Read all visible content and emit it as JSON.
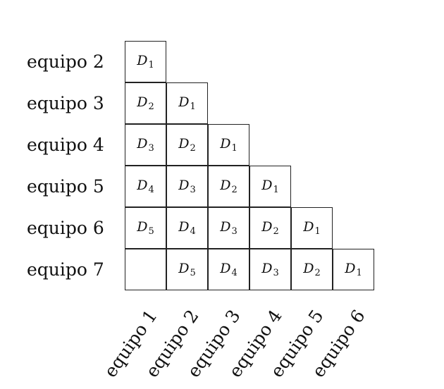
{
  "rows": [
    "equipo 2",
    "equipo 3",
    "equipo 4",
    "equipo 5",
    "equipo 6",
    "equipo 7"
  ],
  "columns": [
    "equipo 1",
    "equipo 2",
    "equipo 3",
    "equipo 4",
    "equipo 5",
    "equipo 6"
  ],
  "cells": [
    [
      "D1"
    ],
    [
      "D2",
      "D1"
    ],
    [
      "D3",
      "D2",
      "D1"
    ],
    [
      "D4",
      "D3",
      "D2",
      "D1"
    ],
    [
      "D5",
      "D4",
      "D3",
      "D2",
      "D1"
    ],
    [
      "",
      "D5",
      "D4",
      "D3",
      "D2",
      "D1"
    ]
  ]
}
